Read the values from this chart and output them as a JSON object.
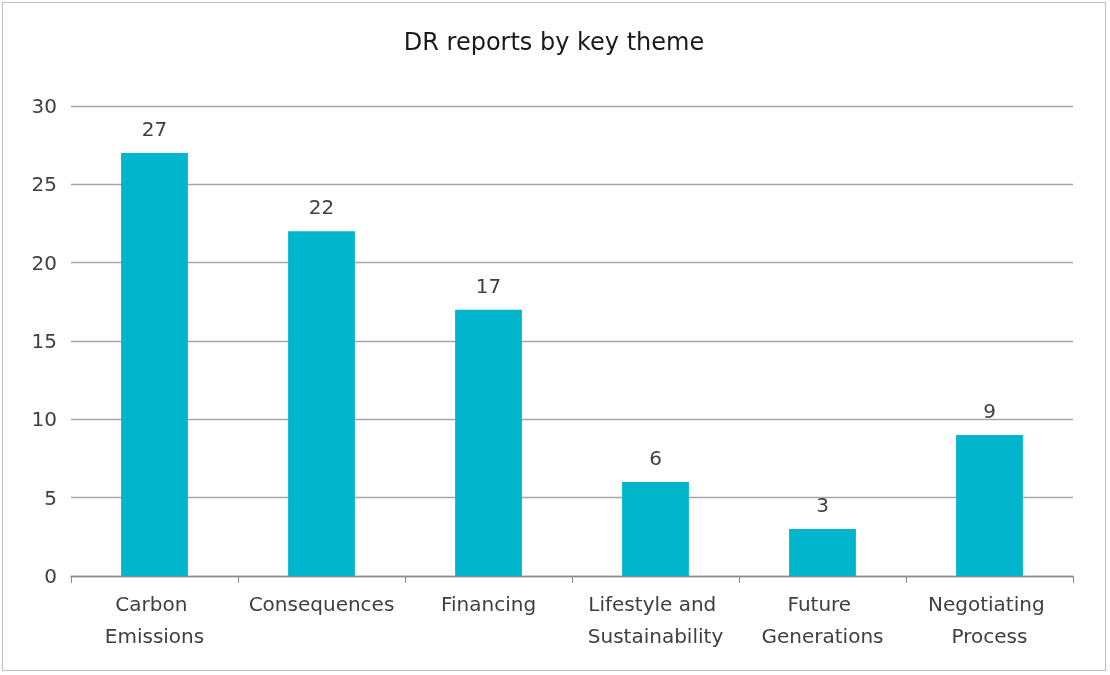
{
  "chart_data": {
    "type": "bar",
    "title": "DR reports by key theme",
    "categories": [
      "Carbon Emissions",
      "Consequences",
      "Financing",
      "Lifestyle and Sustainability",
      "Future Generations",
      "Negotiating Process"
    ],
    "values": [
      27,
      22,
      17,
      6,
      3,
      9
    ],
    "color": "#00b5cc",
    "ylim": [
      0,
      30
    ],
    "yticks": [
      0,
      5,
      10,
      15,
      20,
      25,
      30
    ],
    "grid": "y",
    "data_labels": true
  }
}
